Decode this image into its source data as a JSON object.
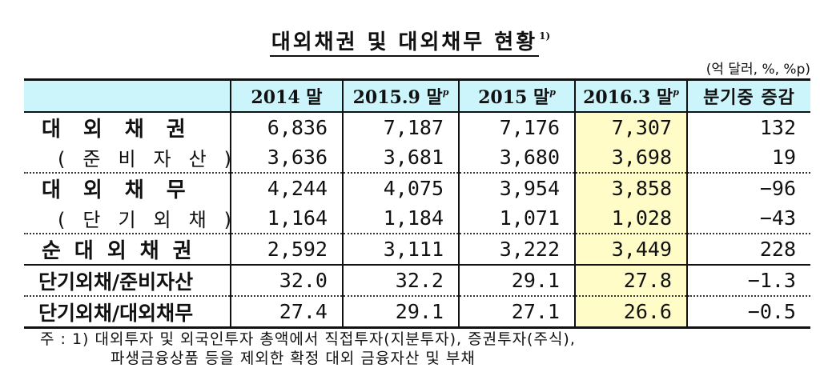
{
  "title": {
    "text": "대외채권 및 대외채무 현황",
    "footnote_mark": "1)"
  },
  "unit": "(억 달러, %, %p)",
  "table": {
    "headers": [
      {
        "label": "",
        "sup": ""
      },
      {
        "label": "2014 말",
        "sup": ""
      },
      {
        "label": "2015.9 말",
        "sup": "p"
      },
      {
        "label": "2015 말",
        "sup": "p"
      },
      {
        "label": "2016.3 말",
        "sup": "p"
      },
      {
        "label": "분기중 증감",
        "sup": ""
      }
    ],
    "highlight_column_color": "#fffcc8",
    "header_color": "#ccf4fb",
    "rows": [
      {
        "label": "대외채권",
        "values": [
          "6,836",
          "7,187",
          "7,176",
          "7,307",
          "132"
        ]
      },
      {
        "label": "(준비자산)",
        "values": [
          "3,636",
          "3,681",
          "3,680",
          "3,698",
          "19"
        ]
      },
      {
        "label": "대외채무",
        "values": [
          "4,244",
          "4,075",
          "3,954",
          "3,858",
          "−96"
        ]
      },
      {
        "label": "(단기외채)",
        "values": [
          "1,164",
          "1,184",
          "1,071",
          "1,028",
          "−43"
        ]
      },
      {
        "label": "순대외채권",
        "values": [
          "2,592",
          "3,111",
          "3,222",
          "3,449",
          "228"
        ]
      },
      {
        "label": "단기외채/준비자산",
        "values": [
          "32.0",
          "32.2",
          "29.1",
          "27.8",
          "−1.3"
        ]
      },
      {
        "label": "단기외채/대외채무",
        "values": [
          "27.4",
          "29.1",
          "27.1",
          "26.6",
          "−0.5"
        ]
      }
    ]
  },
  "note": {
    "line1": "주 : 1) 대외투자 및 외국인투자 총액에서 직접투자(지분투자), 증권투자(주식),",
    "line2": "파생금융상품 등을 제외한 확정 대외 금융자산 및 부채"
  }
}
